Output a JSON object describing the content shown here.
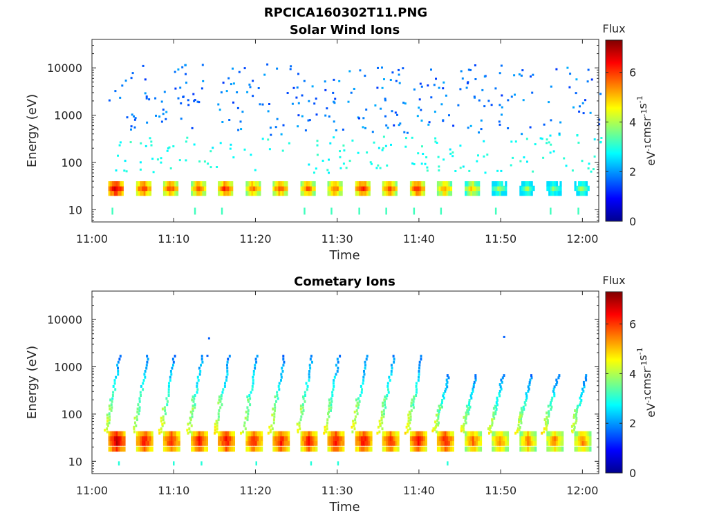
{
  "figure_title": "RPCICA160302T11.PNG",
  "colorbar": {
    "title": "Flux",
    "unit": "eV-1cm-2sr-1s-1",
    "min": 0,
    "max": 7.3,
    "ticks": [
      "0",
      "2",
      "4",
      "6"
    ],
    "tick_values": [
      0,
      2,
      4,
      6
    ],
    "colormap": "jet"
  },
  "chart_data": [
    {
      "type": "heatmap",
      "title": "Solar Wind Ions",
      "xlabel": "Time",
      "ylabel": "Energy (eV)",
      "yscale": "log",
      "xlim": [
        "11:00",
        "12:02"
      ],
      "ylim": [
        5.5,
        40000
      ],
      "xticks": [
        "11:00",
        "11:10",
        "11:20",
        "11:30",
        "11:40",
        "11:50",
        "12:00"
      ],
      "yticks": [
        "10",
        "100",
        "1000",
        "10000"
      ],
      "sweep_start_times_min": [
        2.0,
        5.4,
        8.7,
        12.1,
        15.4,
        18.8,
        22.1,
        25.5,
        28.8,
        32.2,
        35.5,
        38.9,
        42.2,
        45.6,
        48.9,
        52.3,
        55.6,
        59.0
      ],
      "peak_energy_eV": 28,
      "peak_flux": [
        6.8,
        6.2,
        6.0,
        5.8,
        6.2,
        5.8,
        5.9,
        5.8,
        5.8,
        6.3,
        6.0,
        6.2,
        5.5,
        5.0,
        4.0,
        4.0,
        3.8,
        3.9
      ],
      "features": [
        {
          "description": "band",
          "energy_eV": [
            20,
            38
          ],
          "flux_range": [
            3,
            7
          ]
        },
        {
          "description": "scatter",
          "energy_eV": [
            60,
            20000
          ],
          "flux_range": [
            1.3,
            3.0
          ]
        }
      ]
    },
    {
      "type": "heatmap",
      "title": "Cometary Ions",
      "xlabel": "Time",
      "ylabel": "Energy (eV)",
      "yscale": "log",
      "xlim": [
        "11:00",
        "12:02"
      ],
      "ylim": [
        5.5,
        40000
      ],
      "xticks": [
        "11:00",
        "11:10",
        "11:20",
        "11:30",
        "11:40",
        "11:50",
        "12:00"
      ],
      "yticks": [
        "10",
        "100",
        "1000",
        "10000"
      ],
      "sweep_start_times_min": [
        2.0,
        5.4,
        8.7,
        12.1,
        15.4,
        18.8,
        22.1,
        25.5,
        28.8,
        32.2,
        35.5,
        38.9,
        42.2,
        45.6,
        48.9,
        52.3,
        55.6,
        59.0
      ],
      "peak_energy_eV": 28,
      "peak_flux": [
        7.0,
        6.6,
        6.5,
        6.5,
        6.6,
        6.4,
        6.5,
        6.5,
        6.6,
        6.6,
        6.4,
        6.6,
        6.5,
        6.2,
        6.0,
        6.0,
        6.0,
        6.0
      ],
      "features": [
        {
          "description": "band",
          "energy_eV": [
            15,
            40
          ],
          "flux_range": [
            4,
            7.2
          ]
        },
        {
          "description": "arc",
          "energy_eV": [
            40,
            1800
          ],
          "flux_range": [
            1.5,
            4.5
          ]
        }
      ]
    }
  ]
}
